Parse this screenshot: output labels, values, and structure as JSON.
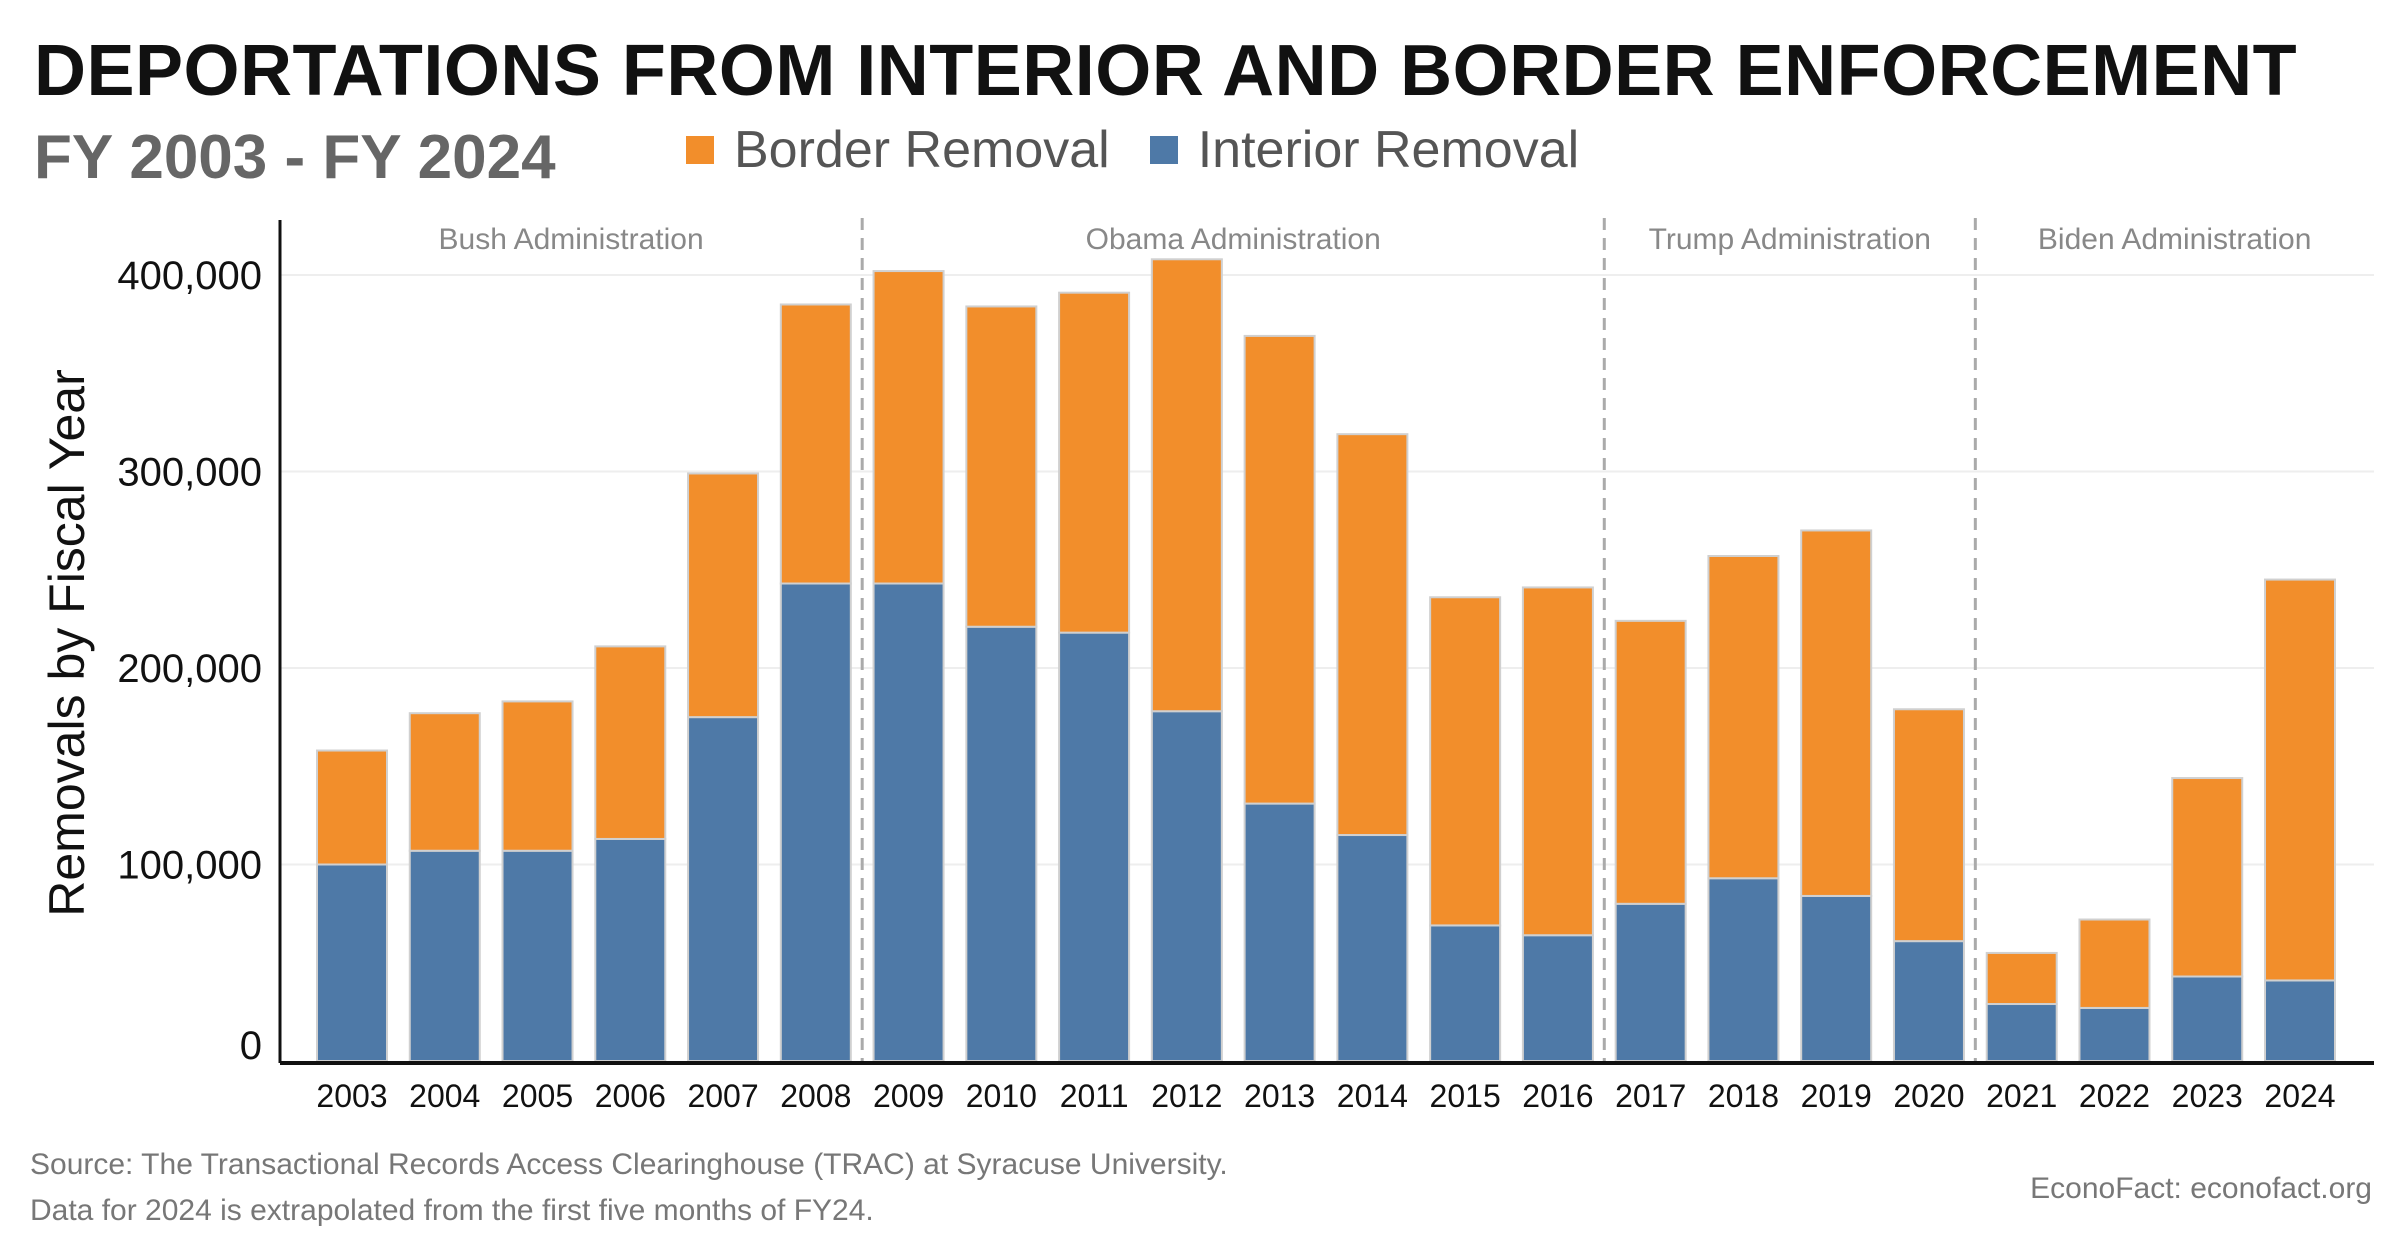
{
  "chart_data": {
    "type": "bar",
    "stacked": true,
    "title": "DEPORTATIONS FROM INTERIOR AND BORDER ENFORCEMENT",
    "subtitle": "FY 2003 - FY 2024",
    "xlabel": "",
    "ylabel": "Removals by Fiscal Year",
    "ylim": [
      0,
      430000
    ],
    "yticks": [
      0,
      100000,
      200000,
      300000,
      400000
    ],
    "ytick_labels": [
      "0",
      "100,000",
      "200,000",
      "300,000",
      "400,000"
    ],
    "grid": true,
    "legend_position": "top",
    "categories": [
      "2003",
      "2004",
      "2005",
      "2006",
      "2007",
      "2008",
      "2009",
      "2010",
      "2011",
      "2012",
      "2013",
      "2014",
      "2015",
      "2016",
      "2017",
      "2018",
      "2019",
      "2020",
      "2021",
      "2022",
      "2023",
      "2024"
    ],
    "series": [
      {
        "name": "Interior Removal",
        "color": "#4e79a7",
        "values": [
          100000,
          107000,
          107000,
          113000,
          175000,
          243000,
          243000,
          221000,
          218000,
          178000,
          131000,
          115000,
          69000,
          64000,
          80000,
          93000,
          84000,
          61000,
          29000,
          27000,
          43000,
          41000
        ]
      },
      {
        "name": "Border Removal",
        "color": "#f28e2b",
        "values": [
          58000,
          70000,
          76000,
          98000,
          124000,
          142000,
          159000,
          163000,
          173000,
          230000,
          238000,
          204000,
          167000,
          177000,
          144000,
          164000,
          186000,
          118000,
          26000,
          45000,
          101000,
          204000
        ]
      }
    ],
    "annotations": [
      {
        "label": "Bush Administration",
        "from": "2003",
        "to": "2008"
      },
      {
        "label": "Obama Administration",
        "from": "2009",
        "to": "2016"
      },
      {
        "label": "Trump Administration",
        "from": "2017",
        "to": "2020"
      },
      {
        "label": "Biden Administration",
        "from": "2021",
        "to": "2024"
      }
    ]
  },
  "legend": {
    "border": "Border Removal",
    "interior": "Interior Removal"
  },
  "footer": {
    "source": "Source: The Transactional Records Access Clearinghouse (TRAC) at Syracuse University.",
    "note": "Data for 2024 is extrapolated from the first five months of FY24.",
    "credit": "EconoFact:   econofact.org"
  }
}
